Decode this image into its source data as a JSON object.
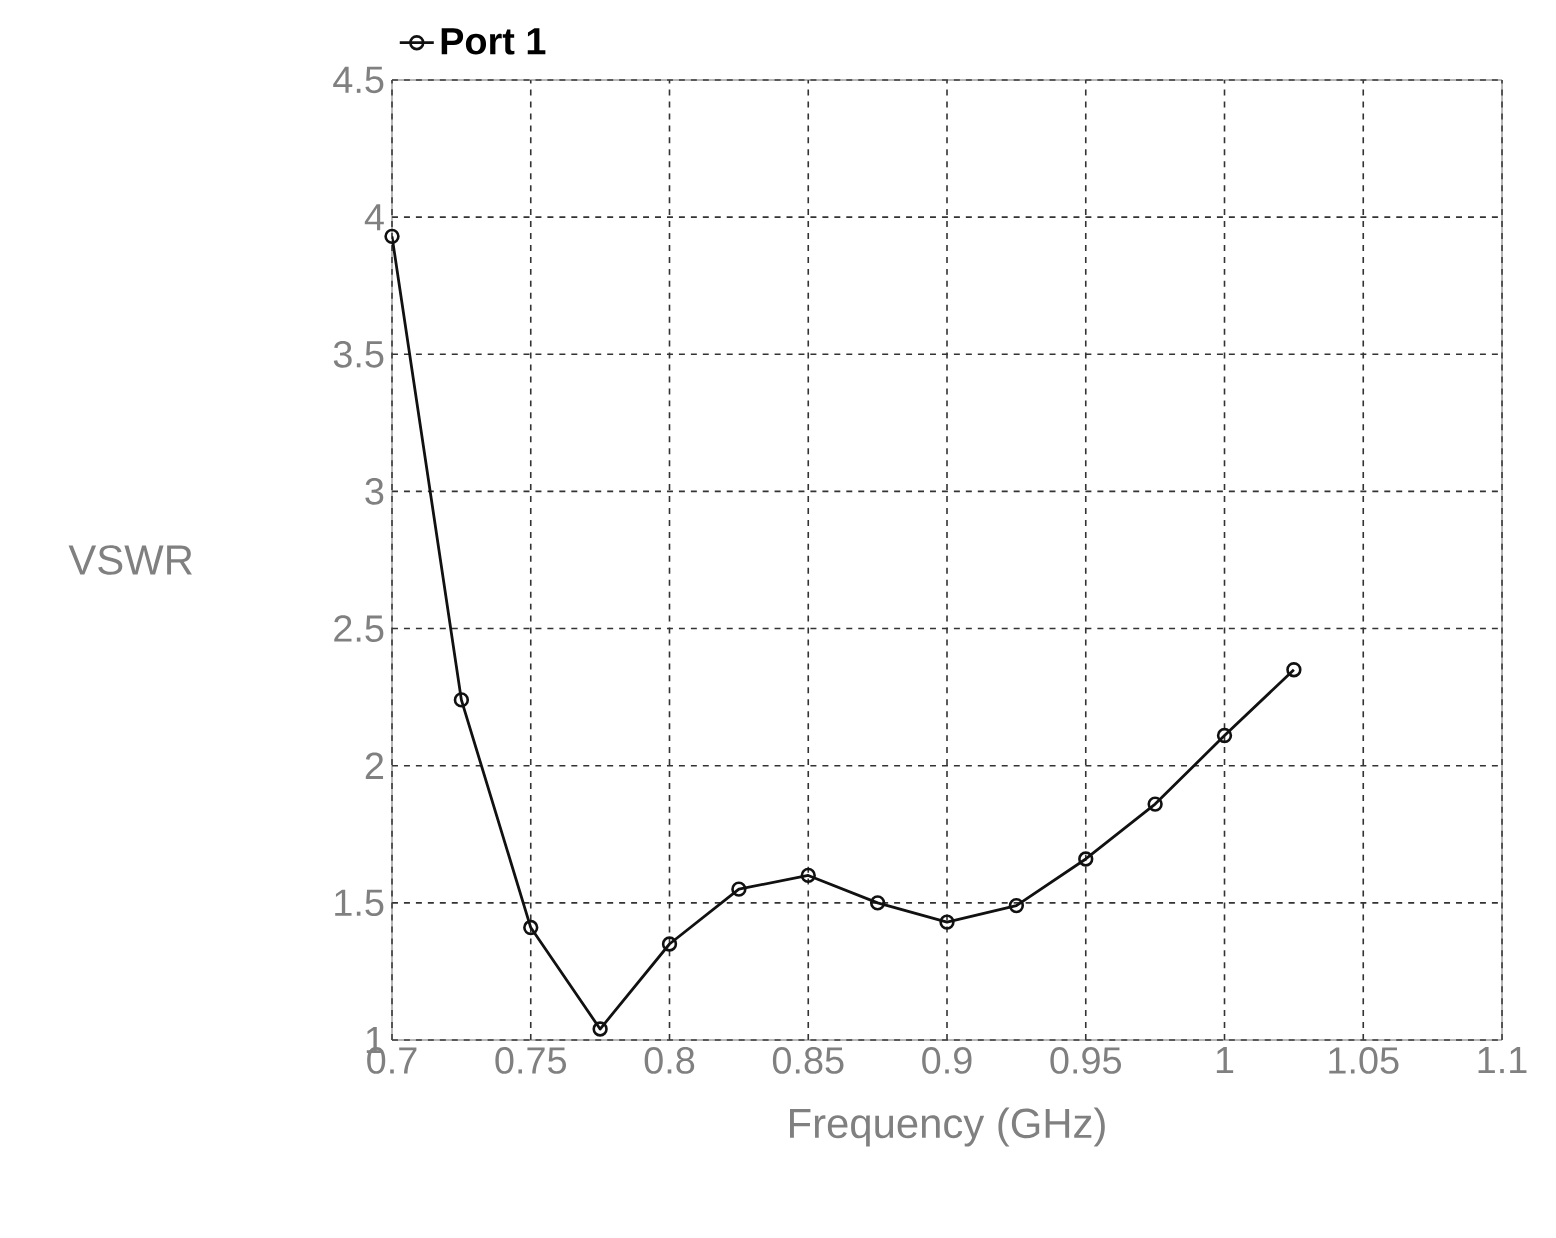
{
  "chart_data": {
    "type": "line",
    "xlabel": "Frequency (GHz)",
    "ylabel": "VSWR",
    "x": [
      0.7,
      0.725,
      0.75,
      0.775,
      0.8,
      0.825,
      0.85,
      0.875,
      0.9,
      0.925,
      0.95,
      0.975,
      1.0,
      1.025
    ],
    "series": [
      {
        "name": "Port 1",
        "color": "#111111",
        "values": [
          3.93,
          2.24,
          1.41,
          1.04,
          1.35,
          1.55,
          1.6,
          1.5,
          1.43,
          1.49,
          1.66,
          1.86,
          2.11,
          2.35
        ]
      }
    ],
    "xlim": [
      0.7,
      1.1
    ],
    "ylim": [
      1,
      4.5
    ],
    "xticks": [
      0.7,
      0.75,
      0.8,
      0.85,
      0.9,
      0.95,
      1,
      1.05,
      1.1
    ],
    "yticks": [
      1,
      1.5,
      2,
      2.5,
      3,
      3.5,
      4,
      4.5
    ],
    "grid": true,
    "legend": "top left",
    "marker": "circle",
    "line_style": "solid"
  }
}
